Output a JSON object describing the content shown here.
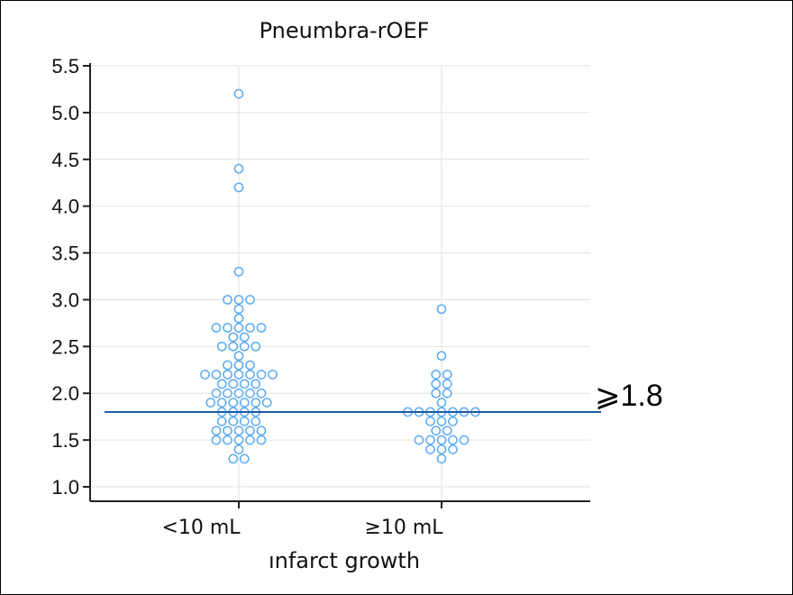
{
  "chart_data": {
    "type": "scatter",
    "title": "Pneumbra-rOEF",
    "xlabel": "ınfarct growth",
    "ylabel": "",
    "categories": [
      "<10 mL",
      "≥10 mL"
    ],
    "ylim": [
      1.0,
      5.5
    ],
    "yticks": [
      "1.0",
      "1.5",
      "2.0",
      "2.5",
      "3.0",
      "3.5",
      "4.0",
      "4.5",
      "5.0",
      "5.5"
    ],
    "grid": true,
    "threshold": {
      "value": 1.8,
      "label": "⩾1.8",
      "color": "#1f5aa6"
    },
    "marker_color": "#5aaaf0",
    "series": [
      {
        "category": "<10 mL",
        "values": [
          5.2,
          4.4,
          4.2,
          3.3,
          3.0,
          3.0,
          3.0,
          2.9,
          2.8,
          2.7,
          2.7,
          2.7,
          2.7,
          2.7,
          2.6,
          2.6,
          2.5,
          2.5,
          2.5,
          2.5,
          2.4,
          2.3,
          2.3,
          2.3,
          2.2,
          2.2,
          2.2,
          2.2,
          2.2,
          2.2,
          2.2,
          2.1,
          2.1,
          2.1,
          2.1,
          2.0,
          2.0,
          2.0,
          2.0,
          2.0,
          1.9,
          1.9,
          1.9,
          1.9,
          1.9,
          1.9,
          1.8,
          1.8,
          1.8,
          1.8,
          1.7,
          1.7,
          1.7,
          1.7,
          1.6,
          1.6,
          1.6,
          1.6,
          1.6,
          1.5,
          1.5,
          1.5,
          1.5,
          1.5,
          1.4,
          1.3,
          1.3
        ]
      },
      {
        "category": "≥10 mL",
        "values": [
          2.9,
          2.4,
          2.2,
          2.2,
          2.1,
          2.1,
          2.0,
          2.0,
          1.9,
          1.8,
          1.8,
          1.8,
          1.8,
          1.8,
          1.8,
          1.8,
          1.7,
          1.7,
          1.7,
          1.6,
          1.6,
          1.5,
          1.5,
          1.5,
          1.5,
          1.5,
          1.4,
          1.4,
          1.4,
          1.3
        ]
      }
    ]
  }
}
